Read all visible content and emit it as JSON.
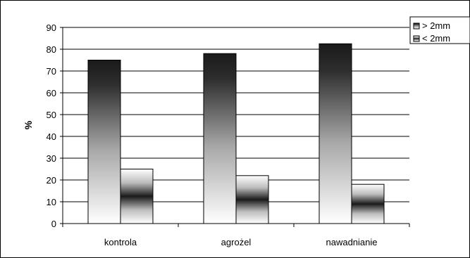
{
  "chart_data": {
    "type": "bar",
    "categories": [
      "kontrola",
      "agrożel",
      "nawadnianie"
    ],
    "series": [
      {
        "name": "> 2mm",
        "values": [
          75,
          78,
          82.5
        ],
        "gradient": "dark-top"
      },
      {
        "name": "< 2mm",
        "values": [
          25,
          22,
          18
        ],
        "gradient": "dark-middle"
      }
    ],
    "ylabel": "%",
    "xlabel": "",
    "ylim": [
      0,
      90
    ],
    "yticks": [
      0,
      10,
      20,
      30,
      40,
      50,
      60,
      70,
      80,
      90
    ],
    "grid": "horizontal",
    "legend_position": "top-right"
  }
}
